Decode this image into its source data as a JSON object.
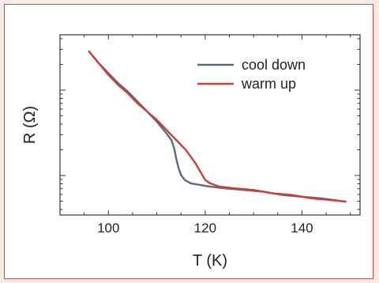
{
  "chart_data": {
    "type": "line",
    "xlabel": "T (K)",
    "ylabel": "R (Ω)",
    "xlim": [
      90,
      152
    ],
    "xticks": [
      100,
      120,
      140
    ],
    "y_scale": "log",
    "y_tick_labels_shown": false,
    "grid": false,
    "legend_position": "top-right",
    "series": [
      {
        "name": "cool down",
        "color": "#5a6a7a",
        "points": [
          [
            96,
            0.98
          ],
          [
            98,
            0.91
          ],
          [
            100,
            0.85
          ],
          [
            102,
            0.79
          ],
          [
            104,
            0.74
          ],
          [
            106,
            0.68
          ],
          [
            108,
            0.62
          ],
          [
            110,
            0.56
          ],
          [
            112,
            0.49
          ],
          [
            113,
            0.45
          ],
          [
            113.6,
            0.4
          ],
          [
            114,
            0.34
          ],
          [
            114.5,
            0.28
          ],
          [
            115,
            0.24
          ],
          [
            115.8,
            0.21
          ],
          [
            117,
            0.19
          ],
          [
            119,
            0.18
          ],
          [
            121,
            0.17
          ],
          [
            124,
            0.16
          ],
          [
            128,
            0.15
          ],
          [
            132,
            0.14
          ],
          [
            136,
            0.12
          ],
          [
            140,
            0.11
          ],
          [
            144,
            0.1
          ],
          [
            149,
            0.08
          ]
        ]
      },
      {
        "name": "warm up",
        "color": "#c8413a",
        "points": [
          [
            96,
            0.98
          ],
          [
            98,
            0.91
          ],
          [
            100,
            0.84
          ],
          [
            102,
            0.78
          ],
          [
            104,
            0.73
          ],
          [
            106,
            0.67
          ],
          [
            108,
            0.62
          ],
          [
            110,
            0.57
          ],
          [
            112,
            0.51
          ],
          [
            114,
            0.45
          ],
          [
            116,
            0.39
          ],
          [
            117,
            0.35
          ],
          [
            118,
            0.31
          ],
          [
            119,
            0.26
          ],
          [
            120,
            0.21
          ],
          [
            121,
            0.19
          ],
          [
            123,
            0.17
          ],
          [
            126,
            0.16
          ],
          [
            130,
            0.15
          ],
          [
            134,
            0.13
          ],
          [
            138,
            0.12
          ],
          [
            142,
            0.1
          ],
          [
            146,
            0.09
          ],
          [
            149,
            0.08
          ]
        ]
      }
    ]
  }
}
